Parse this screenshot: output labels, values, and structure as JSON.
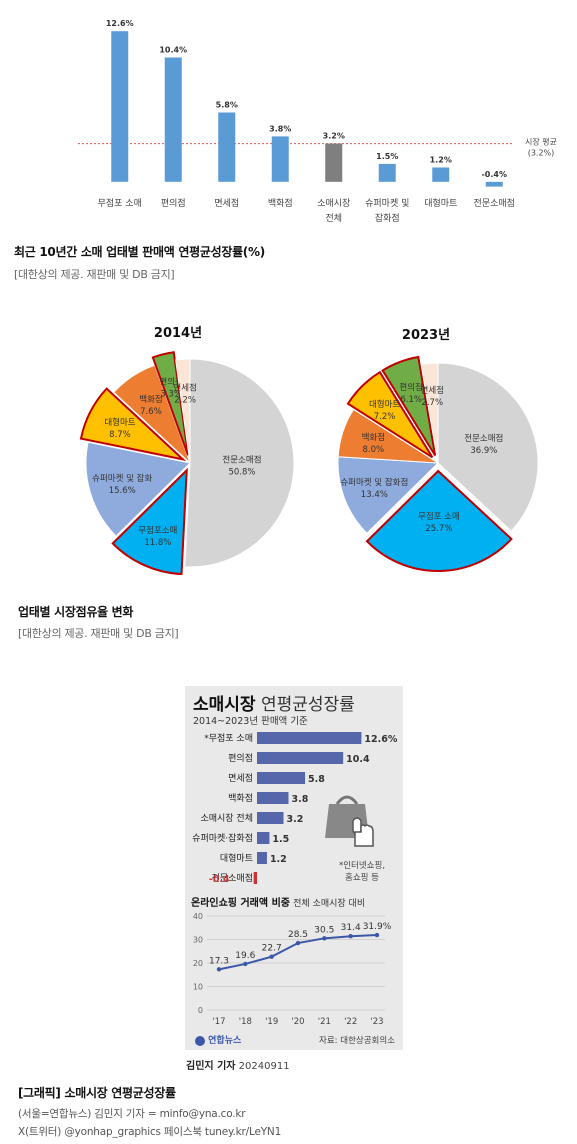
{
  "chart_data": [
    {
      "type": "bar",
      "title": "최근 10년간 소매 업태별 판매액 연평균성장률(%)",
      "categories": [
        "무점포 소매",
        "편의점",
        "면세점",
        "백화점",
        "소매시장 전체",
        "슈퍼마켓 및 잡화점",
        "대형마트",
        "전문소매점"
      ],
      "category_lines": [
        [
          "무점포 소매"
        ],
        [
          "편의점"
        ],
        [
          "면세점"
        ],
        [
          "백화점"
        ],
        [
          "소매시장",
          "전체"
        ],
        [
          "슈퍼마켓 및",
          "잡화점"
        ],
        [
          "대형마트"
        ],
        [
          "전문소매점"
        ]
      ],
      "values": [
        12.6,
        10.4,
        5.8,
        3.8,
        3.2,
        1.5,
        1.2,
        -0.4
      ],
      "value_labels": [
        "12.6%",
        "10.4%",
        "5.8%",
        "3.8%",
        "3.2%",
        "1.5%",
        "1.2%",
        "-0.4%"
      ],
      "highlight_index": 4,
      "reference_line": {
        "value": 3.2,
        "label_lines": [
          "시장 평균",
          "(3.2%)"
        ]
      },
      "ylim": [
        -0.6,
        13.2
      ],
      "colors": {
        "bar": "#5b9bd5",
        "highlight": "#7f7f7f",
        "reference": "#e05555"
      }
    },
    {
      "type": "pie",
      "title": "2014년",
      "slices": [
        {
          "label": "전문소매점",
          "value": 50.8,
          "text": "50.8%",
          "color": "#d4d4d4"
        },
        {
          "label": "무점포소매",
          "value": 11.8,
          "text": "11.8%",
          "color": "#00b0f0",
          "exploded": true
        },
        {
          "label": "슈퍼마켓 및 잡화",
          "value": 15.6,
          "text": "15.6%",
          "color": "#8faadc"
        },
        {
          "label": "대형마트",
          "value": 8.7,
          "text": "8.7%",
          "color": "#ffc000",
          "exploded": true
        },
        {
          "label": "백화점",
          "value": 7.6,
          "text": "7.6%",
          "color": "#ed7d31"
        },
        {
          "label": "편의점",
          "value": 3.3,
          "text": "3.3%",
          "color": "#70ad47",
          "exploded": true
        },
        {
          "label": "면세점",
          "value": 2.2,
          "text": "2.2%",
          "color": "#fbe5d6"
        }
      ]
    },
    {
      "type": "pie",
      "title": "2023년",
      "slices": [
        {
          "label": "전문소매점",
          "value": 36.9,
          "text": "36.9%",
          "color": "#d4d4d4"
        },
        {
          "label": "무점포 소매",
          "value": 25.7,
          "text": "25.7%",
          "color": "#00b0f0",
          "exploded": true
        },
        {
          "label": "슈퍼마켓 및 잡화점",
          "value": 13.4,
          "text": "13.4%",
          "color": "#8faadc"
        },
        {
          "label": "백화점",
          "value": 8.0,
          "text": "8.0%",
          "color": "#ed7d31"
        },
        {
          "label": "대형마트",
          "value": 7.2,
          "text": "7.2%",
          "color": "#ffc000",
          "exploded": true
        },
        {
          "label": "편의점",
          "value": 6.1,
          "text": "6.1%",
          "color": "#70ad47",
          "exploded": true
        },
        {
          "label": "면세점",
          "value": 2.7,
          "text": "2.7%",
          "color": "#fbe5d6"
        }
      ]
    },
    {
      "type": "bar",
      "title": "소매시장 연평균성장률",
      "categories": [
        "*무점포 소매",
        "편의점",
        "면세점",
        "백화점",
        "소매시장 전체",
        "슈퍼마켓·잡화점",
        "대형마트",
        "전문소매점"
      ],
      "values": [
        12.6,
        10.4,
        5.8,
        3.8,
        3.2,
        1.5,
        1.2,
        -0.4
      ],
      "value_labels": [
        "12.6%",
        "10.4",
        "5.8",
        "3.8",
        "3.2",
        "1.5",
        "1.2",
        "-0.4"
      ],
      "colors": {
        "bar": "#5566aa",
        "negative": "#cc3333"
      }
    },
    {
      "type": "line",
      "title": "온라인쇼핑 거래액 비중",
      "x": [
        "'17",
        "'18",
        "'19",
        "'20",
        "'21",
        "'22",
        "'23"
      ],
      "values": [
        17.3,
        19.6,
        22.7,
        28.5,
        30.5,
        31.4,
        31.9
      ],
      "value_labels": [
        "17.3",
        "19.6",
        "22.7",
        "28.5",
        "30.5",
        "31.4",
        "31.9%"
      ],
      "yticks": [
        0,
        10,
        20,
        30,
        40
      ],
      "ylim": [
        0,
        40
      ],
      "color": "#3b57a8"
    }
  ],
  "captions": {
    "bar_caption": "최근 10년간 소매 업태별 판매액 연평균성장률(%)",
    "bar_source": "[대한상의 제공. 재판매 및 DB 금지]",
    "pie_caption": "업태별 시장점유율 변화",
    "pie_source": "[대한상의 제공. 재판매 및 DB 금지]",
    "graphic_caption": "[그래픽] 소매시장 연평균성장률",
    "byline_1": "(서울=연합뉴스) 김민지 기자 = minfo@yna.co.kr",
    "byline_2": "X(트위터) @yonhap_graphics  페이스북 tuney.kr/LeYN1"
  },
  "infographic": {
    "title_bold": "소매시장",
    "title_light": "연평균성장률",
    "period": "2014~2023년 판매액 기준",
    "note_lines": [
      "*인터넷쇼핑,",
      "홈쇼핑 등"
    ],
    "line_title": "온라인쇼핑 거래액 비중",
    "line_subtitle": "전체 소매시장 대비",
    "logo_text": "연합뉴스",
    "source": "자료: 대한상공회의소",
    "author": "김민지 기자",
    "date": "20240911"
  }
}
